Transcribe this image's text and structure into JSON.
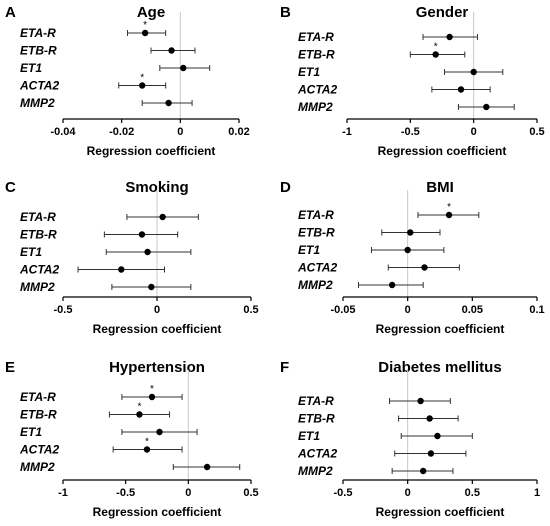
{
  "chart_data": [
    {
      "type": "forest",
      "panel": "A",
      "title": "Age",
      "xlabel": "Regression coefficient",
      "xlim": [
        -0.04,
        0.02
      ],
      "xticks": [
        -0.04,
        -0.02,
        0,
        0.02
      ],
      "xtick_labels": [
        "-0.04",
        "-0.02",
        "0",
        "0.02"
      ],
      "categories": [
        "ETA-R",
        "ETB-R",
        "ET1",
        "ACTA2",
        "MMP2"
      ],
      "estimates": [
        -0.012,
        -0.003,
        0.001,
        -0.013,
        -0.004
      ],
      "ci_low": [
        -0.018,
        -0.01,
        -0.007,
        -0.021,
        -0.013
      ],
      "ci_high": [
        -0.005,
        0.005,
        0.01,
        -0.005,
        0.004
      ],
      "significant": [
        true,
        false,
        false,
        true,
        false
      ],
      "significance_marker": "*"
    },
    {
      "type": "forest",
      "panel": "B",
      "title": "Gender",
      "xlabel": "Regression coefficient",
      "xlim": [
        -1,
        0.5
      ],
      "xticks": [
        -1,
        -0.5,
        0,
        0.5
      ],
      "xtick_labels": [
        "-1",
        "-0.5",
        "0",
        "0.5"
      ],
      "categories": [
        "ETA-R",
        "ETB-R",
        "ET1",
        "ACTA2",
        "MMP2"
      ],
      "estimates": [
        -0.19,
        -0.3,
        0.0,
        -0.1,
        0.1
      ],
      "ci_low": [
        -0.4,
        -0.5,
        -0.23,
        -0.33,
        -0.12
      ],
      "ci_high": [
        0.03,
        -0.07,
        0.23,
        0.13,
        0.32
      ],
      "significant": [
        false,
        true,
        false,
        false,
        false
      ],
      "significance_marker": "*"
    },
    {
      "type": "forest",
      "panel": "C",
      "title": "Smoking",
      "xlabel": "Regression coefficient",
      "xlim": [
        -0.5,
        0.5
      ],
      "xticks": [
        -0.5,
        0,
        0.5
      ],
      "xtick_labels": [
        "-0.5",
        "0",
        "0.5"
      ],
      "categories": [
        "ETA-R",
        "ETB-R",
        "ET1",
        "ACTA2",
        "MMP2"
      ],
      "estimates": [
        0.03,
        -0.08,
        -0.05,
        -0.19,
        -0.03
      ],
      "ci_low": [
        -0.16,
        -0.28,
        -0.27,
        -0.42,
        -0.24
      ],
      "ci_high": [
        0.22,
        0.11,
        0.18,
        0.04,
        0.18
      ],
      "significant": [
        false,
        false,
        false,
        false,
        false
      ],
      "significance_marker": "*"
    },
    {
      "type": "forest",
      "panel": "D",
      "title": "BMI",
      "xlabel": "Regression coefficient",
      "xlim": [
        -0.05,
        0.1
      ],
      "xticks": [
        -0.05,
        0,
        0.05,
        0.1
      ],
      "xtick_labels": [
        "-0.05",
        "0",
        "0.05",
        "0.1"
      ],
      "categories": [
        "ETA-R",
        "ETB-R",
        "ET1",
        "ACTA2",
        "MMP2"
      ],
      "estimates": [
        0.032,
        0.002,
        0.0,
        0.013,
        -0.012
      ],
      "ci_low": [
        0.008,
        -0.02,
        -0.028,
        -0.015,
        -0.038
      ],
      "ci_high": [
        0.055,
        0.025,
        0.028,
        0.04,
        0.012
      ],
      "significant": [
        true,
        false,
        false,
        false,
        false
      ],
      "significance_marker": "*"
    },
    {
      "type": "forest",
      "panel": "E",
      "title": "Hypertension",
      "xlabel": "Regression coefficient",
      "xlim": [
        -1,
        0.5
      ],
      "xticks": [
        -1,
        -0.5,
        0,
        0.5
      ],
      "xtick_labels": [
        "-1",
        "-0.5",
        "0",
        "0.5"
      ],
      "categories": [
        "ETA-R",
        "ETB-R",
        "ET1",
        "ACTA2",
        "MMP2"
      ],
      "estimates": [
        -0.29,
        -0.39,
        -0.23,
        -0.33,
        0.15
      ],
      "ci_low": [
        -0.53,
        -0.63,
        -0.53,
        -0.6,
        -0.12
      ],
      "ci_high": [
        -0.05,
        -0.15,
        0.07,
        -0.05,
        0.41
      ],
      "significant": [
        true,
        true,
        false,
        true,
        false
      ],
      "significance_marker": "*"
    },
    {
      "type": "forest",
      "panel": "F",
      "title": "Diabetes mellitus",
      "xlabel": "Regression coefficient",
      "xlim": [
        -0.5,
        1
      ],
      "xticks": [
        -0.5,
        0,
        0.5,
        1
      ],
      "xtick_labels": [
        "-0.5",
        "0",
        "0.5",
        "1"
      ],
      "categories": [
        "ETA-R",
        "ETB-R",
        "ET1",
        "ACTA2",
        "MMP2"
      ],
      "estimates": [
        0.1,
        0.17,
        0.23,
        0.18,
        0.12
      ],
      "ci_low": [
        -0.14,
        -0.07,
        -0.05,
        -0.1,
        -0.12
      ],
      "ci_high": [
        0.33,
        0.39,
        0.5,
        0.45,
        0.35
      ],
      "significant": [
        false,
        false,
        false,
        false,
        false
      ],
      "significance_marker": "*"
    }
  ]
}
